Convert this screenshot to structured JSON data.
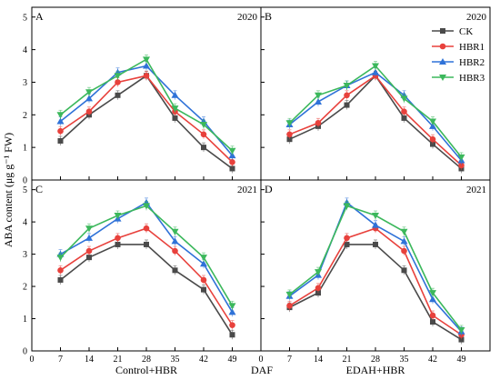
{
  "figure": {
    "ylabel": "ABA content (μg g⁻¹ FW)",
    "xlabel_left": "Control+HBR",
    "xlabel_center": "DAF",
    "xlabel_right": "EDAH+HBR"
  },
  "legend": {
    "placement": "top-right of panel B",
    "entries": [
      "CK",
      "HBR1",
      "HBR2",
      "HBR3"
    ]
  },
  "series_style": [
    {
      "name": "CK",
      "color": "#4a4a4a",
      "marker": "square"
    },
    {
      "name": "HBR1",
      "color": "#e8413c",
      "marker": "circle"
    },
    {
      "name": "HBR2",
      "color": "#2f72d8",
      "marker": "triangle-up"
    },
    {
      "name": "HBR3",
      "color": "#3cb85c",
      "marker": "triangle-down"
    }
  ],
  "chart_data": [
    {
      "type": "line",
      "panel": "A",
      "year": "2020",
      "x": [
        7,
        14,
        21,
        28,
        35,
        42,
        49
      ],
      "xlim": [
        0,
        56
      ],
      "ylim": [
        0,
        5.3
      ],
      "xticks": [
        0,
        7,
        14,
        21,
        28,
        35,
        42,
        49
      ],
      "yticks": [
        0,
        1,
        2,
        3,
        4,
        5
      ],
      "series": [
        {
          "name": "CK",
          "values": [
            1.2,
            2.0,
            2.6,
            3.2,
            1.9,
            1.0,
            0.35
          ]
        },
        {
          "name": "HBR1",
          "values": [
            1.5,
            2.1,
            3.0,
            3.2,
            2.1,
            1.4,
            0.55
          ]
        },
        {
          "name": "HBR2",
          "values": [
            1.8,
            2.5,
            3.3,
            3.5,
            2.6,
            1.8,
            0.75
          ]
        },
        {
          "name": "HBR3",
          "values": [
            2.0,
            2.7,
            3.2,
            3.7,
            2.2,
            1.7,
            0.9
          ]
        }
      ]
    },
    {
      "type": "line",
      "panel": "B",
      "year": "2020",
      "x": [
        7,
        14,
        21,
        28,
        35,
        42,
        49
      ],
      "xlim": [
        0,
        56
      ],
      "ylim": [
        0,
        5.3
      ],
      "xticks": [
        0,
        7,
        14,
        21,
        28,
        35,
        42,
        49
      ],
      "yticks": [
        0,
        1,
        2,
        3,
        4,
        5
      ],
      "series": [
        {
          "name": "CK",
          "values": [
            1.25,
            1.65,
            2.3,
            3.2,
            1.9,
            1.1,
            0.35
          ]
        },
        {
          "name": "HBR1",
          "values": [
            1.4,
            1.75,
            2.6,
            3.2,
            2.1,
            1.25,
            0.45
          ]
        },
        {
          "name": "HBR2",
          "values": [
            1.7,
            2.4,
            2.9,
            3.3,
            2.6,
            1.65,
            0.6
          ]
        },
        {
          "name": "HBR3",
          "values": [
            1.75,
            2.6,
            2.9,
            3.5,
            2.5,
            1.8,
            0.7
          ]
        }
      ]
    },
    {
      "type": "line",
      "panel": "C",
      "year": "2021",
      "x": [
        7,
        14,
        21,
        28,
        35,
        42,
        49
      ],
      "xlim": [
        0,
        56
      ],
      "ylim": [
        0,
        5.3
      ],
      "xticks": [
        0,
        7,
        14,
        21,
        28,
        35,
        42,
        49
      ],
      "yticks": [
        0,
        1,
        2,
        3,
        4,
        5
      ],
      "series": [
        {
          "name": "CK",
          "values": [
            2.2,
            2.9,
            3.3,
            3.3,
            2.5,
            1.9,
            0.5
          ]
        },
        {
          "name": "HBR1",
          "values": [
            2.5,
            3.1,
            3.5,
            3.8,
            3.1,
            2.2,
            0.8
          ]
        },
        {
          "name": "HBR2",
          "values": [
            3.0,
            3.5,
            4.1,
            4.6,
            3.4,
            2.7,
            1.2
          ]
        },
        {
          "name": "HBR3",
          "values": [
            2.9,
            3.8,
            4.2,
            4.5,
            3.7,
            2.9,
            1.4
          ]
        }
      ]
    },
    {
      "type": "line",
      "panel": "D",
      "year": "2021",
      "x": [
        7,
        14,
        21,
        28,
        35,
        42,
        49
      ],
      "xlim": [
        0,
        56
      ],
      "ylim": [
        0,
        5.3
      ],
      "xticks": [
        0,
        7,
        14,
        21,
        28,
        35,
        42,
        49
      ],
      "yticks": [
        0,
        1,
        2,
        3,
        4,
        5
      ],
      "series": [
        {
          "name": "CK",
          "values": [
            1.35,
            1.8,
            3.3,
            3.3,
            2.5,
            0.9,
            0.35
          ]
        },
        {
          "name": "HBR1",
          "values": [
            1.4,
            1.95,
            3.5,
            3.8,
            3.1,
            1.1,
            0.5
          ]
        },
        {
          "name": "HBR2",
          "values": [
            1.7,
            2.35,
            4.6,
            3.9,
            3.4,
            1.6,
            0.6
          ]
        },
        {
          "name": "HBR3",
          "values": [
            1.75,
            2.45,
            4.5,
            4.2,
            3.7,
            1.8,
            0.65
          ]
        }
      ]
    }
  ]
}
